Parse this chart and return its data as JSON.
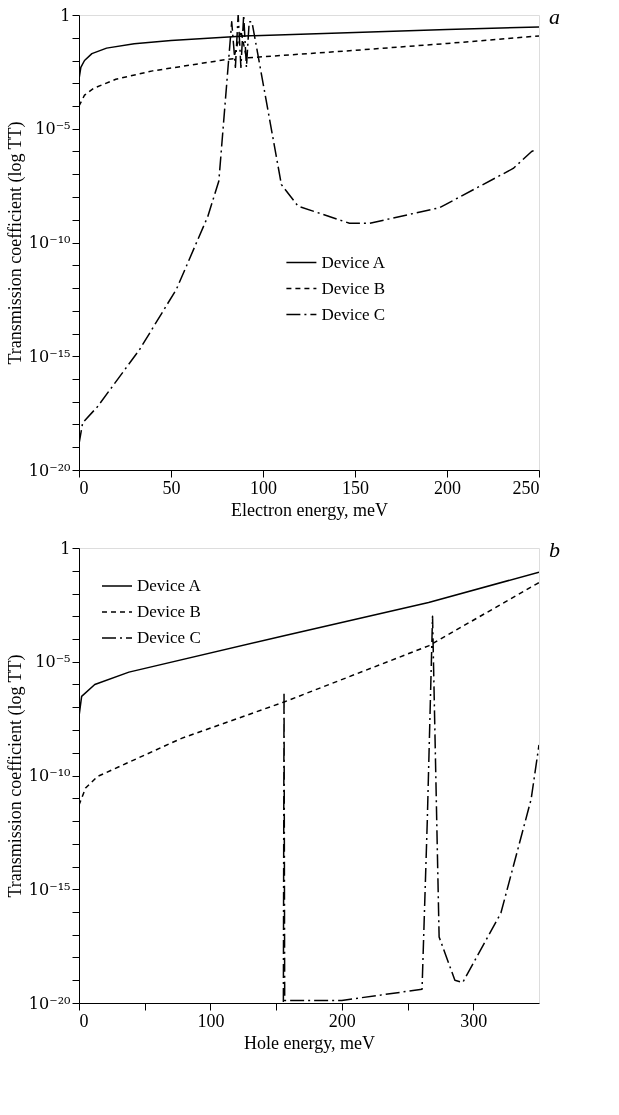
{
  "chart_data": [
    {
      "type": "line",
      "title": "a",
      "xlabel": "Electron energy, meV",
      "ylabel": "Transmission coefficient (log TT)",
      "log": true,
      "legend": "center right",
      "grid": false,
      "xlim": [
        0,
        250
      ],
      "xticks": [
        0,
        50,
        100,
        150,
        200,
        250
      ],
      "ylim": [
        1e-20,
        1
      ],
      "yticks": [
        {
          "value": 1e-20,
          "label": "10⁻²⁰"
        },
        {
          "value": 1e-19,
          "label": null
        },
        {
          "value": 1e-18,
          "label": null
        },
        {
          "value": 1e-17,
          "label": null
        },
        {
          "value": 1e-16,
          "label": null
        },
        {
          "value": 1e-15,
          "label": "10⁻¹⁵"
        },
        {
          "value": 1e-14,
          "label": null
        },
        {
          "value": 1e-13,
          "label": null
        },
        {
          "value": 1e-12,
          "label": null
        },
        {
          "value": 1e-11,
          "label": null
        },
        {
          "value": 1e-10,
          "label": "10⁻¹⁰"
        },
        {
          "value": 1e-09,
          "label": null
        },
        {
          "value": 1e-08,
          "label": null
        },
        {
          "value": 1e-07,
          "label": null
        },
        {
          "value": 1e-06,
          "label": null
        },
        {
          "value": 1e-05,
          "label": "10⁻⁵"
        },
        {
          "value": 0.0001,
          "label": null
        },
        {
          "value": 0.001,
          "label": null
        },
        {
          "value": 0.01,
          "label": null
        },
        {
          "value": 0.1,
          "label": null
        },
        1
      ],
      "series": [
        {
          "name": "Device A",
          "color": "#000000",
          "line_style": "solid",
          "x": [
            0,
            1,
            3,
            7,
            15,
            30,
            50,
            90,
            150,
            200,
            250
          ],
          "values": [
            0.0015,
            0.005,
            0.01,
            0.02,
            0.035,
            0.055,
            0.075,
            0.12,
            0.17,
            0.23,
            0.3
          ]
        },
        {
          "name": "Device B",
          "color": "#000000",
          "line_style": "dashed",
          "x": [
            0,
            3,
            8,
            20,
            40,
            80,
            84,
            88,
            91,
            150,
            200,
            250
          ],
          "values": [
            0.0001,
            0.0003,
            0.0006,
            0.0015,
            0.0035,
            0.011,
            0.012,
            0.2,
            0.013,
            0.028,
            0.056,
            0.12
          ]
        },
        {
          "name": "Device C",
          "color": "#000000",
          "line_style": "dashdot",
          "x": [
            0,
            2,
            10,
            33,
            53,
            70,
            76,
            83,
            85,
            86.5,
            88,
            89.5,
            91,
            92.5,
            94,
            110,
            119,
            147,
            158,
            196,
            236,
            246,
            248
          ],
          "values": [
            1.4e-19,
            1.2e-18,
            6e-18,
            2e-15,
            9e-13,
            1.4e-09,
            5e-08,
            0.5,
            0.005,
            1,
            0.005,
            1,
            0.005,
            0.5,
            0.5,
            3.5e-08,
            4e-09,
            7e-10,
            7e-10,
            3.4e-09,
            1.8e-07,
            1e-06,
            1.2e-06
          ]
        }
      ]
    },
    {
      "type": "line",
      "title": "b",
      "xlabel": "Hole energy, meV",
      "ylabel": "Transmission coefficient (log TT)",
      "log": true,
      "legend": "top left",
      "grid": false,
      "xlim": [
        0,
        350
      ],
      "xticks": [
        0,
        {
          "value": 50,
          "label": null
        },
        100,
        {
          "value": 150,
          "label": null
        },
        200,
        {
          "value": 250,
          "label": null
        },
        300
      ],
      "ylim": [
        1e-20,
        1
      ],
      "yticks": [
        {
          "value": 1e-20,
          "label": "10⁻²⁰"
        },
        {
          "value": 1e-19,
          "label": null
        },
        {
          "value": 1e-18,
          "label": null
        },
        {
          "value": 1e-17,
          "label": null
        },
        {
          "value": 1e-16,
          "label": null
        },
        {
          "value": 1e-15,
          "label": "10⁻¹⁵"
        },
        {
          "value": 1e-14,
          "label": null
        },
        {
          "value": 1e-13,
          "label": null
        },
        {
          "value": 1e-12,
          "label": null
        },
        {
          "value": 1e-11,
          "label": null
        },
        {
          "value": 1e-10,
          "label": "10⁻¹⁰"
        },
        {
          "value": 1e-09,
          "label": null
        },
        {
          "value": 1e-08,
          "label": null
        },
        {
          "value": 1e-07,
          "label": null
        },
        {
          "value": 1e-06,
          "label": null
        },
        {
          "value": 1e-05,
          "label": "10⁻⁵"
        },
        {
          "value": 0.0001,
          "label": null
        },
        {
          "value": 0.001,
          "label": null
        },
        {
          "value": 0.01,
          "label": null
        },
        {
          "value": 0.1,
          "label": null
        },
        1
      ],
      "series": [
        {
          "name": "Device A",
          "color": "#000000",
          "line_style": "solid",
          "x": [
            0,
            2,
            12,
            38,
            156,
            266,
            350
          ],
          "values": [
            4e-08,
            3e-07,
            1e-06,
            3.5e-06,
            0.00014,
            0.004,
            0.087
          ]
        },
        {
          "name": "Device B",
          "color": "#000000",
          "line_style": "dashed",
          "x": [
            0,
            5,
            14,
            78,
            156,
            266,
            348,
            350
          ],
          "values": [
            5e-12,
            2.8e-11,
            9e-11,
            4.3e-09,
            1.7e-07,
            5e-05,
            0.026,
            0.03
          ]
        },
        {
          "name": "Device C",
          "color": "#000000",
          "line_style": "dashdot",
          "x": [
            155.5,
            156,
            156.5,
            200,
            261,
            265,
            269,
            274,
            286,
            292,
            321,
            344,
            350
          ],
          "values": [
            1.1e-20,
            4.7e-07,
            1.3e-20,
            1.3e-20,
            4e-20,
            1e-12,
            0.001,
            8e-18,
            1e-19,
            8e-20,
            9e-17,
            9e-12,
            2.2e-09
          ]
        }
      ]
    }
  ]
}
